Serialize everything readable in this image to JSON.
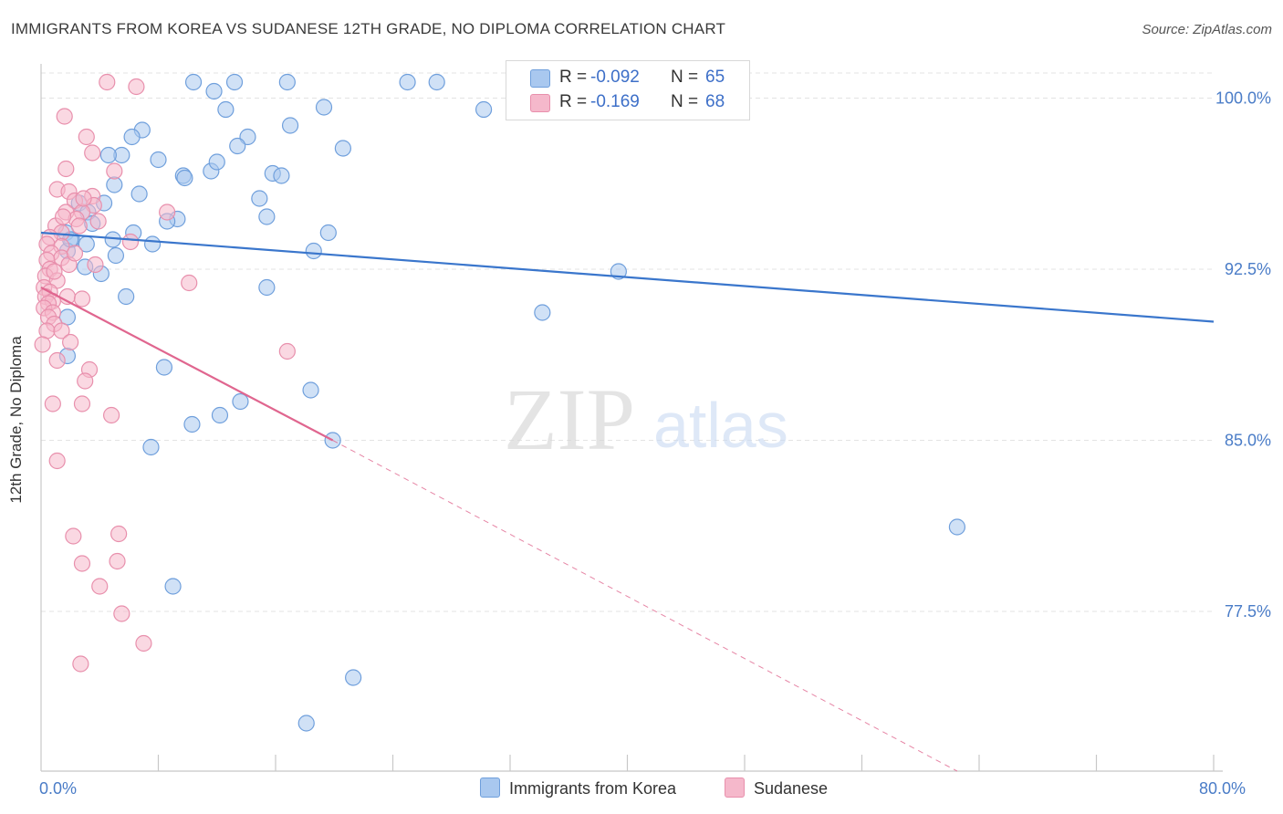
{
  "title": "IMMIGRANTS FROM KOREA VS SUDANESE 12TH GRADE, NO DIPLOMA CORRELATION CHART",
  "source": "Source: ZipAtlas.com",
  "watermark": {
    "zip": "ZIP",
    "atlas": "atlas"
  },
  "colors": {
    "korea_fill": "#a9c8ef",
    "korea_stroke": "#6f9fdc",
    "korea_line": "#3a76cc",
    "sudan_fill": "#f5b8cb",
    "sudan_stroke": "#e88fac",
    "sudan_line": "#e0668f",
    "axis_label": "#4a7cc7",
    "grid": "#e3e3e3"
  },
  "stats": [
    {
      "r_label": "R =",
      "r_value": "-0.092",
      "n_label": "N =",
      "n_value": "65"
    },
    {
      "r_label": "R =",
      "r_value": "-0.169",
      "n_label": "N =",
      "n_value": "68"
    }
  ],
  "legend": [
    {
      "label": "Immigrants from Korea"
    },
    {
      "label": "Sudanese"
    }
  ],
  "chart_data": {
    "type": "scatter",
    "title": "IMMIGRANTS FROM KOREA VS SUDANESE 12TH GRADE, NO DIPLOMA CORRELATION CHART",
    "xlabel": "",
    "ylabel": "12th Grade, No Diploma",
    "xlim": [
      0,
      80
    ],
    "ylim": [
      70.5,
      101.5
    ],
    "x_tick_labels": [
      {
        "value": 0,
        "label": "0.0%"
      },
      {
        "value": 80,
        "label": "80.0%"
      }
    ],
    "x_minor_ticks": [
      8,
      16,
      24,
      32,
      40,
      48,
      56,
      64,
      72,
      80
    ],
    "y_ticks": [
      {
        "value": 100,
        "label": "100.0%"
      },
      {
        "value": 92.5,
        "label": "92.5%"
      },
      {
        "value": 85,
        "label": "85.0%"
      },
      {
        "value": 77.5,
        "label": "77.5%"
      }
    ],
    "series": [
      {
        "name": "Immigrants from Korea",
        "points": [
          [
            10.4,
            100.7
          ],
          [
            13.2,
            100.7
          ],
          [
            16.8,
            100.7
          ],
          [
            25.0,
            100.7
          ],
          [
            27.0,
            100.7
          ],
          [
            39.3,
            100.7
          ],
          [
            11.8,
            100.3
          ],
          [
            19.3,
            99.6
          ],
          [
            12.6,
            99.5
          ],
          [
            30.2,
            99.5
          ],
          [
            6.9,
            98.6
          ],
          [
            6.2,
            98.3
          ],
          [
            14.1,
            98.3
          ],
          [
            13.4,
            97.9
          ],
          [
            20.6,
            97.8
          ],
          [
            5.5,
            97.5
          ],
          [
            4.6,
            97.5
          ],
          [
            8.0,
            97.3
          ],
          [
            11.6,
            96.8
          ],
          [
            9.7,
            96.6
          ],
          [
            15.8,
            96.7
          ],
          [
            16.4,
            96.6
          ],
          [
            9.8,
            96.5
          ],
          [
            6.7,
            95.8
          ],
          [
            14.9,
            95.6
          ],
          [
            4.3,
            95.4
          ],
          [
            2.6,
            95.4
          ],
          [
            3.2,
            95.0
          ],
          [
            9.3,
            94.7
          ],
          [
            15.4,
            94.8
          ],
          [
            8.6,
            94.6
          ],
          [
            6.3,
            94.1
          ],
          [
            19.6,
            94.1
          ],
          [
            1.7,
            94.1
          ],
          [
            2.1,
            93.8
          ],
          [
            4.9,
            93.8
          ],
          [
            7.6,
            93.6
          ],
          [
            3.1,
            93.6
          ],
          [
            18.6,
            93.3
          ],
          [
            1.8,
            93.3
          ],
          [
            5.1,
            93.1
          ],
          [
            3.0,
            92.6
          ],
          [
            4.1,
            92.3
          ],
          [
            39.4,
            92.4
          ],
          [
            15.4,
            91.7
          ],
          [
            5.8,
            91.3
          ],
          [
            34.2,
            90.6
          ],
          [
            1.8,
            90.4
          ],
          [
            1.8,
            88.7
          ],
          [
            8.4,
            88.2
          ],
          [
            18.4,
            87.2
          ],
          [
            13.6,
            86.7
          ],
          [
            12.2,
            86.1
          ],
          [
            10.3,
            85.7
          ],
          [
            19.9,
            85.0
          ],
          [
            7.5,
            84.7
          ],
          [
            62.5,
            81.2
          ],
          [
            9.0,
            78.6
          ],
          [
            21.3,
            74.6
          ],
          [
            18.1,
            72.6
          ],
          [
            2.0,
            93.8
          ],
          [
            3.5,
            94.5
          ],
          [
            5.0,
            96.2
          ],
          [
            12.0,
            97.2
          ],
          [
            17.0,
            98.8
          ]
        ]
      },
      {
        "name": "Sudanese",
        "points": [
          [
            4.5,
            100.7
          ],
          [
            6.5,
            100.5
          ],
          [
            1.6,
            99.2
          ],
          [
            3.1,
            98.3
          ],
          [
            3.5,
            97.6
          ],
          [
            1.7,
            96.9
          ],
          [
            5.0,
            96.8
          ],
          [
            1.1,
            96.0
          ],
          [
            1.9,
            95.9
          ],
          [
            3.5,
            95.7
          ],
          [
            2.3,
            95.5
          ],
          [
            3.6,
            95.3
          ],
          [
            1.7,
            95.0
          ],
          [
            2.8,
            95.0
          ],
          [
            8.6,
            95.0
          ],
          [
            2.4,
            94.7
          ],
          [
            3.9,
            94.6
          ],
          [
            1.0,
            94.4
          ],
          [
            2.6,
            94.4
          ],
          [
            1.4,
            94.1
          ],
          [
            0.6,
            93.9
          ],
          [
            6.1,
            93.7
          ],
          [
            0.4,
            93.6
          ],
          [
            1.4,
            93.5
          ],
          [
            0.7,
            93.2
          ],
          [
            1.4,
            93.0
          ],
          [
            0.4,
            92.9
          ],
          [
            1.9,
            92.7
          ],
          [
            0.6,
            92.5
          ],
          [
            0.3,
            92.2
          ],
          [
            1.1,
            92.0
          ],
          [
            0.2,
            91.7
          ],
          [
            0.6,
            91.5
          ],
          [
            0.3,
            91.3
          ],
          [
            1.8,
            91.3
          ],
          [
            0.8,
            91.1
          ],
          [
            2.8,
            91.2
          ],
          [
            0.5,
            91.0
          ],
          [
            0.2,
            90.8
          ],
          [
            0.8,
            90.6
          ],
          [
            0.5,
            90.4
          ],
          [
            0.9,
            90.1
          ],
          [
            0.4,
            89.8
          ],
          [
            1.4,
            89.8
          ],
          [
            2.0,
            89.3
          ],
          [
            0.1,
            89.2
          ],
          [
            1.1,
            88.5
          ],
          [
            16.8,
            88.9
          ],
          [
            3.3,
            88.1
          ],
          [
            3.0,
            87.6
          ],
          [
            2.8,
            86.6
          ],
          [
            0.8,
            86.6
          ],
          [
            4.8,
            86.1
          ],
          [
            10.1,
            91.9
          ],
          [
            1.1,
            84.1
          ],
          [
            2.2,
            80.8
          ],
          [
            5.3,
            80.9
          ],
          [
            2.8,
            79.6
          ],
          [
            5.2,
            79.7
          ],
          [
            4.0,
            78.6
          ],
          [
            5.5,
            77.4
          ],
          [
            7.0,
            76.1
          ],
          [
            2.7,
            75.2
          ],
          [
            3.7,
            92.7
          ],
          [
            2.3,
            93.2
          ],
          [
            0.9,
            92.4
          ],
          [
            1.5,
            94.8
          ],
          [
            2.9,
            95.6
          ]
        ]
      }
    ],
    "trend_lines": [
      {
        "series": "Immigrants from Korea",
        "x0": 0,
        "y0": 94.1,
        "x1": 80,
        "y1": 90.2,
        "dashed_to": null
      },
      {
        "series": "Sudanese",
        "x0": 0,
        "y0": 91.7,
        "x1": 19.9,
        "y1": 85.0,
        "dashed_to": {
          "x": 62.5,
          "y": 70.5
        }
      }
    ]
  }
}
